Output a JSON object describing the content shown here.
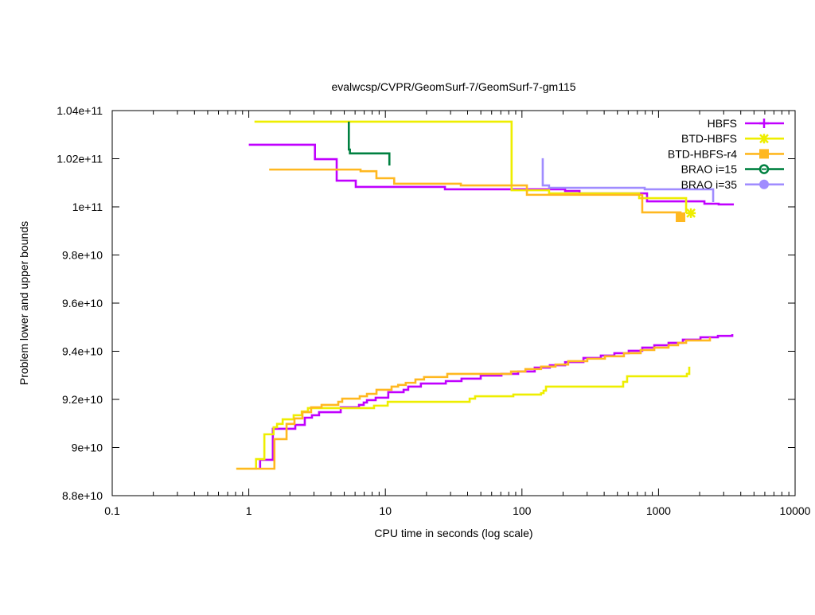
{
  "chart_data": {
    "type": "line",
    "title": "evalwcsp/CVPR/GeomSurf-7/GeomSurf-7-gm115",
    "xlabel": "CPU time in seconds (log scale)",
    "ylabel": "Problem lower and upper bounds",
    "xscale": "log",
    "xlim": [
      0.1,
      10000
    ],
    "ylim": [
      88000000000.0,
      104000000000.0
    ],
    "x_ticks": [
      0.1,
      1,
      10,
      100,
      1000,
      10000
    ],
    "x_tick_labels": [
      "0.1",
      "1",
      "10",
      "100",
      "1000",
      "10000"
    ],
    "y_ticks": [
      88000000000.0,
      90000000000.0,
      92000000000.0,
      94000000000.0,
      96000000000.0,
      98000000000.0,
      100000000000.0,
      102000000000.0,
      104000000000.0
    ],
    "y_tick_labels": [
      "8.8e+10",
      "9e+10",
      "9.2e+10",
      "9.4e+10",
      "9.6e+10",
      "9.8e+10",
      "1e+11",
      "1.02e+11",
      "1.04e+11"
    ],
    "grid": false,
    "legend_position": "top-right",
    "series": [
      {
        "name": "HBFS",
        "color": "#c000ff",
        "marker": "plus",
        "upper": [
          [
            1.0,
            102580000000.0
          ],
          [
            3.05,
            101980000000.0
          ],
          [
            4.4,
            101090000000.0
          ],
          [
            6.07,
            100830000000.0
          ],
          [
            27.3,
            100730000000.0
          ],
          [
            207,
            100660000000.0
          ],
          [
            264,
            100560000000.0
          ],
          [
            824,
            100230000000.0
          ],
          [
            2168,
            100130000000.0
          ],
          [
            2757,
            100100000000.0
          ],
          [
            3560,
            100100000000.0
          ]
        ],
        "lower": [
          [
            1.21,
            89120000000.0
          ],
          [
            1.21,
            89490000000.0
          ],
          [
            1.5,
            90780000000.0
          ],
          [
            2.19,
            90940000000.0
          ],
          [
            2.57,
            91240000000.0
          ],
          [
            2.9,
            91340000000.0
          ],
          [
            3.27,
            91470000000.0
          ],
          [
            4.71,
            91670000000.0
          ],
          [
            6.41,
            91770000000.0
          ],
          [
            6.94,
            91870000000.0
          ],
          [
            7.33,
            91970000000.0
          ],
          [
            8.49,
            92070000000.0
          ],
          [
            10.5,
            92300000000.0
          ],
          [
            13.6,
            92400000000.0
          ],
          [
            14.7,
            92530000000.0
          ],
          [
            18.2,
            92660000000.0
          ],
          [
            27.7,
            92760000000.0
          ],
          [
            36.1,
            92860000000.0
          ],
          [
            49.9,
            92990000000.0
          ],
          [
            70.8,
            93060000000.0
          ],
          [
            93.8,
            93160000000.0
          ],
          [
            124,
            93320000000.0
          ],
          [
            160,
            93420000000.0
          ],
          [
            207,
            93550000000.0
          ],
          [
            282,
            93720000000.0
          ],
          [
            378,
            93820000000.0
          ],
          [
            475,
            93920000000.0
          ],
          [
            605,
            94020000000.0
          ],
          [
            760,
            94150000000.0
          ],
          [
            931,
            94250000000.0
          ],
          [
            1184,
            94350000000.0
          ],
          [
            1507,
            94480000000.0
          ],
          [
            2028,
            94580000000.0
          ],
          [
            2721,
            94640000000.0
          ],
          [
            3467,
            94710000000.0
          ]
        ]
      },
      {
        "name": "BTD-HBFS",
        "color": "#eeee00",
        "marker": "star",
        "upper": [
          [
            1.1,
            103540000000.0
          ],
          [
            84,
            100690000000.0
          ],
          [
            158,
            100560000000.0
          ],
          [
            721,
            100360000000.0
          ],
          [
            1592,
            99740000000.0
          ]
        ],
        "end_marker": [
          1726,
          99740000000.0
        ],
        "lower": [
          [
            0.81,
            89120000000.0
          ],
          [
            1.13,
            89520000000.0
          ],
          [
            1.3,
            90550000000.0
          ],
          [
            1.52,
            90840000000.0
          ],
          [
            1.61,
            90980000000.0
          ],
          [
            1.77,
            91170000000.0
          ],
          [
            2.13,
            91340000000.0
          ],
          [
            2.44,
            91500000000.0
          ],
          [
            2.71,
            91640000000.0
          ],
          [
            8.26,
            91740000000.0
          ],
          [
            10.4,
            91900000000.0
          ],
          [
            41.4,
            92030000000.0
          ],
          [
            45.4,
            92130000000.0
          ],
          [
            86.5,
            92200000000.0
          ],
          [
            138,
            92260000000.0
          ],
          [
            144,
            92360000000.0
          ],
          [
            150,
            92530000000.0
          ],
          [
            551,
            92730000000.0
          ],
          [
            589,
            92960000000.0
          ],
          [
            1612,
            93060000000.0
          ],
          [
            1679,
            93360000000.0
          ]
        ]
      },
      {
        "name": "BTD-HBFS-r4",
        "color": "#ffb820",
        "marker": "square",
        "upper": [
          [
            1.41,
            101550000000.0
          ],
          [
            6.58,
            101480000000.0
          ],
          [
            8.6,
            101190000000.0
          ],
          [
            11.6,
            100960000000.0
          ],
          [
            35.7,
            100890000000.0
          ],
          [
            108.7,
            100500000000.0
          ],
          [
            760,
            99770000000.0
          ],
          [
            1449,
            99570000000.0
          ]
        ],
        "end_marker": [
          1449,
          99570000000.0
        ],
        "lower": [
          [
            0.81,
            89120000000.0
          ],
          [
            1.54,
            90350000000.0
          ],
          [
            1.89,
            90980000000.0
          ],
          [
            2.16,
            91210000000.0
          ],
          [
            2.47,
            91470000000.0
          ],
          [
            2.86,
            91670000000.0
          ],
          [
            3.41,
            91770000000.0
          ],
          [
            4.52,
            91900000000.0
          ],
          [
            4.83,
            92030000000.0
          ],
          [
            6.49,
            92130000000.0
          ],
          [
            7.33,
            92230000000.0
          ],
          [
            8.61,
            92400000000.0
          ],
          [
            11.1,
            92530000000.0
          ],
          [
            12.4,
            92600000000.0
          ],
          [
            14.1,
            92690000000.0
          ],
          [
            16.6,
            92830000000.0
          ],
          [
            19.2,
            92930000000.0
          ],
          [
            28.4,
            93060000000.0
          ],
          [
            83.2,
            93160000000.0
          ],
          [
            106,
            93260000000.0
          ],
          [
            138,
            93360000000.0
          ],
          [
            176,
            93450000000.0
          ],
          [
            218,
            93590000000.0
          ],
          [
            301,
            93690000000.0
          ],
          [
            405,
            93790000000.0
          ],
          [
            558,
            93920000000.0
          ],
          [
            740,
            94050000000.0
          ],
          [
            931,
            94150000000.0
          ],
          [
            1184,
            94250000000.0
          ],
          [
            1390,
            94350000000.0
          ],
          [
            1592,
            94450000000.0
          ],
          [
            2379,
            94580000000.0
          ]
        ]
      },
      {
        "name": "BRAO i=15",
        "color": "#008040",
        "marker": "circle-open",
        "upper": [
          [
            5.4,
            103540000000.0
          ],
          [
            5.4,
            102380000000.0
          ],
          [
            5.5,
            102220000000.0
          ],
          [
            10.7,
            101720000000.0
          ]
        ],
        "lower": []
      },
      {
        "name": "BRAO i=35",
        "color": "#a08cff",
        "marker": "circle",
        "upper": [
          [
            142,
            102020000000.0
          ],
          [
            142,
            100890000000.0
          ],
          [
            158,
            100790000000.0
          ],
          [
            792,
            100730000000.0
          ],
          [
            2512,
            100200000000.0
          ]
        ],
        "lower": []
      }
    ]
  }
}
